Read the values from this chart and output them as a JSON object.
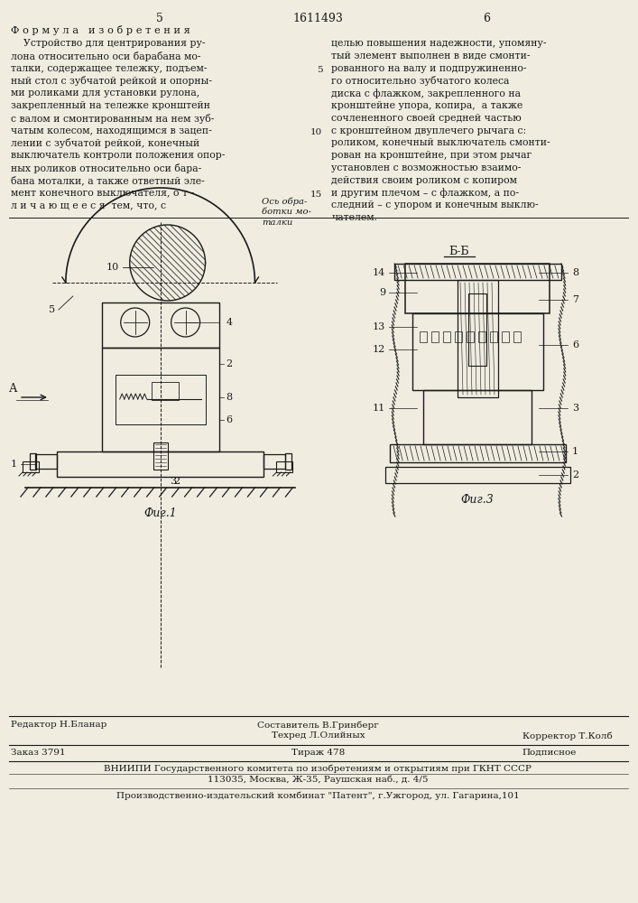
{
  "patent_number": "1611493",
  "page_left": "5",
  "page_right": "6",
  "bg_color": "#f0ece0",
  "text_color": "#1a1a1a",
  "title_formula": "Ф о р м у л а   и з о б р е т е н и я",
  "body_left": [
    "    Устройство для центрирования ру-",
    "лона относительно оси барабана мо-",
    "талки, содержащее тележку, подъем-",
    "ный стол с зубчатой рейкой и опорны-",
    "ми роликами для установки рулона,",
    "закрепленный на тележке кронштейн",
    "с валом и смонтированным на нем зуб-",
    "чатым колесом, находящимся в зацеп-",
    "лении с зубчатой рейкой, конечный",
    "выключатель контроли положения опор-",
    "ных роликов относительно оси бара-",
    "бана моталки, а также ответный эле- ",
    "мент конечного выключателя, о т -",
    "л и ч а ю щ е е с я  тем, что, с"
  ],
  "body_right": [
    "целью повышения надежности, упомяну-",
    "тый элемент выполнен в виде смонти-",
    "рованного на валу и подпружиненно-",
    "го относительно зубчатого колеса",
    "диска с флажком, закрепленного на",
    "кронштейне упора, копира,  а также",
    "сочлененного своей средней частью",
    "с кронштейном двуплечего рычага с:",
    "роликом, конечный выключатель смонти-",
    "рован на кронштейне, при этом рычаг",
    "установлен с возможностью взаимо-",
    "действия своим роликом с копиром",
    "и другим плечом – с флажком, а по-",
    "следний – с упором и конечным выклю-",
    "чателем."
  ],
  "line_nums": {
    "5": 3,
    "10": 8,
    "15": 13
  },
  "fig1_label": "Фиг.1",
  "fig3_label": "Фиг.3",
  "section_label": "Б-Б",
  "axis_label_line1": "Ось обра-",
  "axis_label_line2": "ботки мо-",
  "axis_label_line3": "талки",
  "footer_editor": "Редактор Н.Бланар",
  "footer_composer": "Составитель В.Гринберг",
  "footer_techred": "Техред Л.Олийных",
  "footer_corrector": "Корректор Т.Колб",
  "footer_order": "Заказ 3791",
  "footer_circulation": "Тираж 478",
  "footer_podp": "Подписное",
  "footer_vniip1": "ВНИИПИ Государственного комитета по изобретениям и открытиям при ГКНТ СССР",
  "footer_vniip2": "113035, Москва, Ж-35, Раушская наб., д. 4/5",
  "footer_prod": "Производственно-издательский комбинат \"Патент\", г.Ужгород, ул. Гагарина,101"
}
